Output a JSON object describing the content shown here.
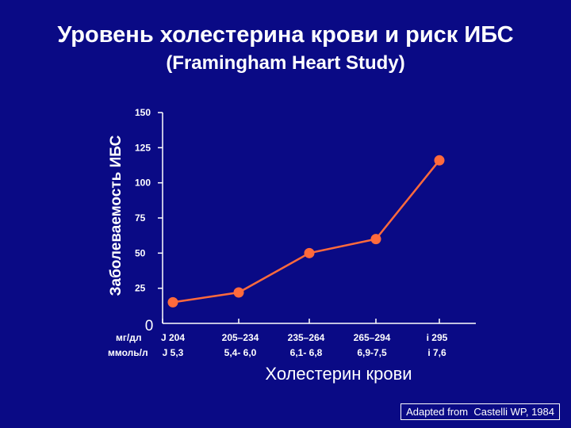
{
  "chart_data": {
    "type": "line",
    "title": "Уровень холестерина крови и риск ИБС",
    "subtitle": "(Framingham Heart Study)",
    "ylabel": "Заболеваемость ИБС",
    "xlabel": "Холестерин крови",
    "ylim": [
      0,
      150
    ],
    "yticks": [
      150,
      125,
      100,
      75,
      50,
      25
    ],
    "y_zero_label": "0",
    "unit_row1_label": "мг/дл",
    "unit_row2_label": "ммоль/л",
    "categories_mg": [
      "J 204",
      "205–234",
      "235–264",
      "265–294",
      "і 295"
    ],
    "categories_mmol": [
      "J 5,3",
      "5,4- 6,0",
      "6,1- 6,8",
      "6,9-7,5",
      "і 7,6"
    ],
    "values": [
      15,
      22,
      50,
      60,
      116
    ],
    "grid": false,
    "line_color": "#ff6a3c",
    "axis_color": "#ffffff"
  },
  "footer": {
    "prefix": "Adapted from",
    "source": "Castelli WP, 1984"
  }
}
